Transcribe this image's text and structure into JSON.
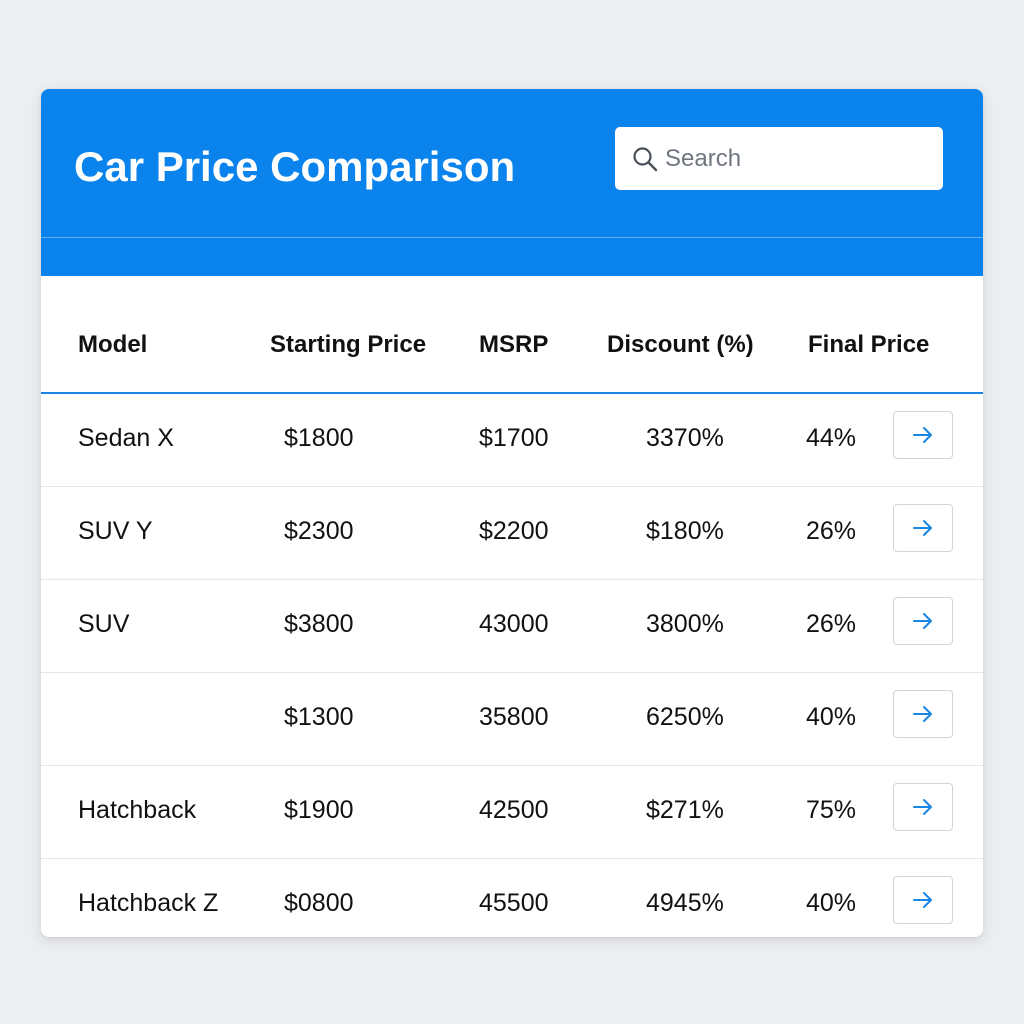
{
  "header": {
    "title": "Car Price Comparison",
    "accent_color": "#0a84ec"
  },
  "search": {
    "placeholder": "Search",
    "icon": "search-icon"
  },
  "table": {
    "columns": [
      "Model",
      "Starting Price",
      "MSRP",
      "Discount (%)",
      "Final Price"
    ],
    "rows": [
      {
        "model": "Sedan X",
        "starting_price": "$1800",
        "msrp": "$1700",
        "discount": "3370%",
        "final_price": "44%"
      },
      {
        "model": "SUV Y",
        "starting_price": "$2300",
        "msrp": "$2200",
        "discount": "$180%",
        "final_price": "26%"
      },
      {
        "model": "SUV",
        "starting_price": "$3800",
        "msrp": "43000",
        "discount": "3800%",
        "final_price": "26%"
      },
      {
        "model": "",
        "starting_price": "$1300",
        "msrp": "35800",
        "discount": "6250%",
        "final_price": "40%"
      },
      {
        "model": "Hatchback",
        "starting_price": "$1900",
        "msrp": "42500",
        "discount": "$271%",
        "final_price": "75%"
      },
      {
        "model": "Hatchback Z",
        "starting_price": "$0800",
        "msrp": "45500",
        "discount": "4945%",
        "final_price": "40%"
      }
    ],
    "row_action_icon": "arrow-right-icon"
  }
}
